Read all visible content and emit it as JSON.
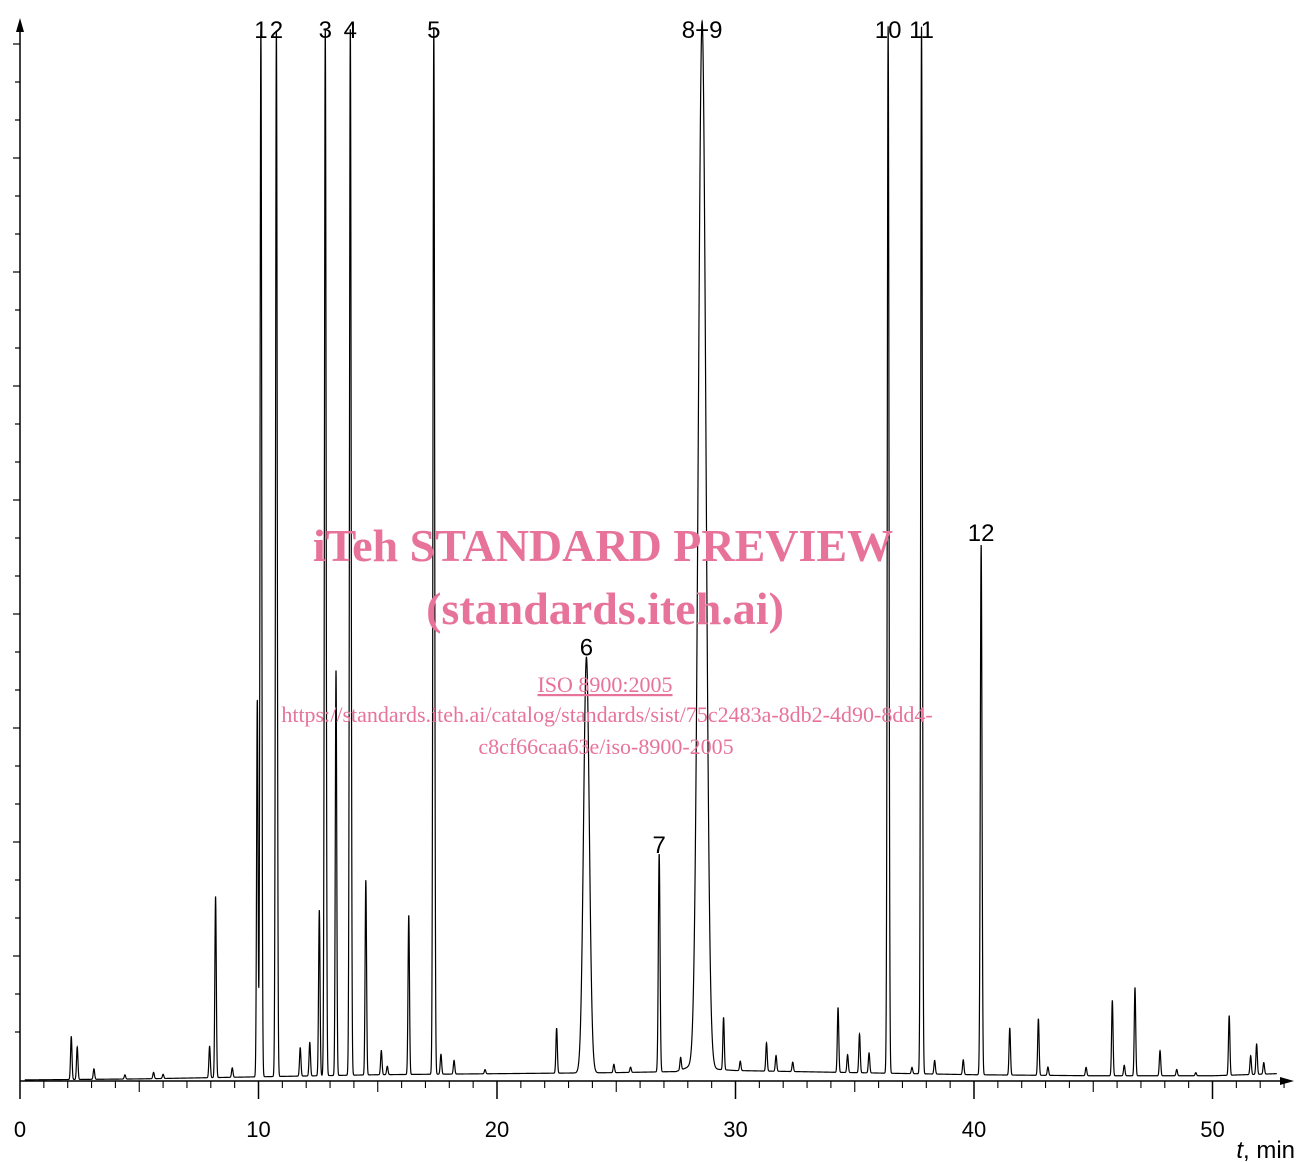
{
  "chart_data": {
    "type": "line",
    "xlabel_italic": "t",
    "xlabel_rest": ", min",
    "xlim": [
      0,
      53
    ],
    "x_ticks": [
      0,
      10,
      20,
      30,
      40,
      50
    ],
    "tick_labels": [
      "0",
      "10",
      "20",
      "30",
      "40",
      "50"
    ],
    "baseline_x": [
      0,
      5,
      10,
      15,
      20,
      25,
      27.5,
      28,
      30,
      35,
      40,
      45,
      50,
      52.7
    ],
    "baseline_y": [
      0.1,
      0.2,
      0.4,
      0.6,
      0.7,
      0.8,
      0.9,
      1.3,
      1.0,
      0.8,
      0.6,
      0.5,
      0.5,
      0.7
    ],
    "labeled_peaks": [
      {
        "label": "1",
        "x": 10.1,
        "y": 100
      },
      {
        "label": "2",
        "x": 10.75,
        "y": 100
      },
      {
        "label": "3",
        "x": 12.8,
        "y": 100
      },
      {
        "label": "4",
        "x": 13.85,
        "y": 100
      },
      {
        "label": "5",
        "x": 17.35,
        "y": 100
      },
      {
        "label": "6",
        "x": 23.75,
        "y": 39.7
      },
      {
        "label": "7",
        "x": 26.8,
        "y": 20.8
      },
      {
        "label": "8+9",
        "x": 28.6,
        "y": 100
      },
      {
        "label": "10",
        "x": 36.4,
        "y": 100
      },
      {
        "label": "11",
        "x": 37.8,
        "y": 100
      },
      {
        "label": "12",
        "x": 40.3,
        "y": 50.6
      }
    ],
    "minor_peaks": [
      [
        2.15,
        4.1
      ],
      [
        2.4,
        3.1
      ],
      [
        3.1,
        1.0
      ],
      [
        4.4,
        0.4
      ],
      [
        5.6,
        0.6
      ],
      [
        6.0,
        0.4
      ],
      [
        7.95,
        3.0
      ],
      [
        8.2,
        17.3
      ],
      [
        8.9,
        0.9
      ],
      [
        9.95,
        36.0
      ],
      [
        11.75,
        2.7
      ],
      [
        12.15,
        3.2
      ],
      [
        12.55,
        15.8
      ],
      [
        13.25,
        38.7
      ],
      [
        14.5,
        18.6
      ],
      [
        15.15,
        2.3
      ],
      [
        15.4,
        0.8
      ],
      [
        16.3,
        15.2
      ],
      [
        17.65,
        1.9
      ],
      [
        18.2,
        1.3
      ],
      [
        19.5,
        0.4
      ],
      [
        22.5,
        4.3
      ],
      [
        24.9,
        0.8
      ],
      [
        25.6,
        0.5
      ],
      [
        27.7,
        1.2
      ],
      [
        29.5,
        5.0
      ],
      [
        30.2,
        0.9
      ],
      [
        31.3,
        2.7
      ],
      [
        31.7,
        1.5
      ],
      [
        32.4,
        0.9
      ],
      [
        34.3,
        6.2
      ],
      [
        34.7,
        1.7
      ],
      [
        35.2,
        3.7
      ],
      [
        35.6,
        1.9
      ],
      [
        37.4,
        0.6
      ],
      [
        38.35,
        1.3
      ],
      [
        39.55,
        1.4
      ],
      [
        41.5,
        4.5
      ],
      [
        42.7,
        5.4
      ],
      [
        43.1,
        0.8
      ],
      [
        44.7,
        0.8
      ],
      [
        45.8,
        7.2
      ],
      [
        46.3,
        1.0
      ],
      [
        46.75,
        8.4
      ],
      [
        47.8,
        2.4
      ],
      [
        48.5,
        0.6
      ],
      [
        49.3,
        0.3
      ],
      [
        50.7,
        5.7
      ],
      [
        51.6,
        1.8
      ],
      [
        51.85,
        2.9
      ],
      [
        52.15,
        1.1
      ]
    ]
  },
  "watermark": {
    "line1": "iTeh STANDARD PREVIEW",
    "line2": "(standards.iteh.ai)",
    "line3": "ISO 8900:2005",
    "line4": "https://standards.iteh.ai/catalog/standards/sist/75c2483a-8db2-4d90-8dd4-",
    "line5": "c8cf66caa63e/iso-8900-2005"
  }
}
